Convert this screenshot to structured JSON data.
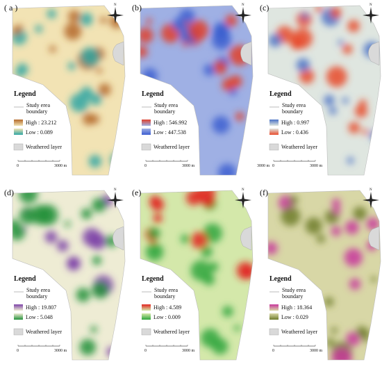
{
  "panels": [
    {
      "label": "( a )",
      "north": "N",
      "legend_title": "Legend",
      "boundary_label": "Study erea boundary",
      "high": "High : 23.212",
      "low": "Low : 0.089",
      "weathered": "Weathered layer",
      "scale": [
        "0",
        "3000 m"
      ],
      "colors": {
        "high": "#b4692a",
        "mid": "#f2e3b4",
        "low": "#2fa6a3"
      }
    },
    {
      "label": "(b)",
      "north": "N",
      "legend_title": "Legend",
      "boundary_label": "Study erea boundary",
      "high": "High : 546.992",
      "low": "Low : 447.538",
      "weathered": "Weathered layer",
      "scale": [
        "0",
        "3000 m"
      ],
      "colors": {
        "high": "#e0402c",
        "mid": "#9fb0e4",
        "low": "#3c5fd0"
      }
    },
    {
      "label": "(c)",
      "north": "N",
      "legend_title": "Legend",
      "boundary_label": "Study erea boundary",
      "high": "High : 0.997",
      "low": "Low : 0.436",
      "weathered": "Weathered layer",
      "scale": [
        "3000 m",
        "0",
        "3000 m"
      ],
      "colors": {
        "high": "#4a72c6",
        "mid": "#dfe6e0",
        "low": "#e84b2c"
      }
    },
    {
      "label": "(d)",
      "north": "N",
      "legend_title": "Legend",
      "boundary_label": "Study erea boundary",
      "high": "High : 19.807",
      "low": "Low : 5.048",
      "weathered": "Weathered layer",
      "scale": [
        "0",
        "3000 m"
      ],
      "colors": {
        "high": "#7c42a8",
        "mid": "#eeecd4",
        "low": "#22903a"
      }
    },
    {
      "label": "(e)",
      "north": "N",
      "legend_title": "Legend",
      "boundary_label": "Study erea boundary",
      "high": "High : 4.589",
      "low": "Low : 0.009",
      "weathered": "Weathered layer",
      "scale": [
        "0",
        "3000 m"
      ],
      "colors": {
        "high": "#e22420",
        "mid": "#d4e8aa",
        "low": "#2ea63c"
      }
    },
    {
      "label": "(f)",
      "north": "N",
      "legend_title": "Legend",
      "boundary_label": "Study erea boundary",
      "high": "High : 18.364",
      "low": "Low : 0.029",
      "weathered": "Weathered layer",
      "scale": [
        "0",
        "3000 m"
      ],
      "colors": {
        "high": "#c8369c",
        "mid": "#d8d7a6",
        "low": "#6e7c2c"
      }
    }
  ]
}
